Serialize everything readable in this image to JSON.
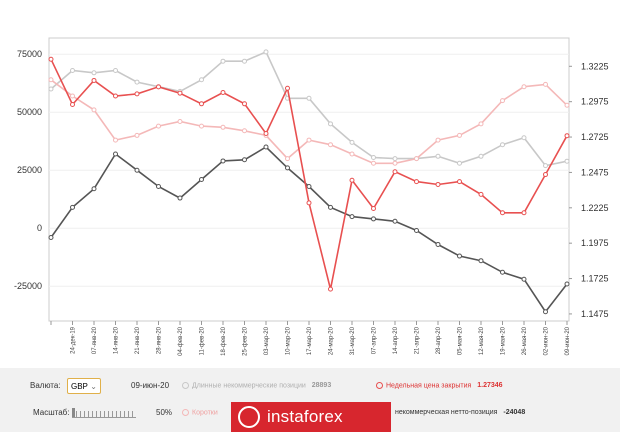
{
  "chart_data": {
    "type": "line",
    "categories": [
      "",
      "24-дек-19",
      "07-янв-20",
      "14-янв-20",
      "21-янв-20",
      "28-янв-20",
      "04-фев-20",
      "11-фев-20",
      "18-фев-20",
      "25-фев-20",
      "03-мар-20",
      "10-мар-20",
      "17-мар-20",
      "24-мар-20",
      "31-мар-20",
      "07-апр-20",
      "14-апр-20",
      "21-апр-20",
      "28-апр-20",
      "05-мая-20",
      "12-мая-20",
      "19-мая-20",
      "26-мая-20",
      "02-июн-20",
      "09-июн-20"
    ],
    "left_axis": {
      "min": -40000,
      "max": 82000,
      "ticks": [
        -25000,
        0,
        25000,
        50000,
        75000
      ],
      "tick_labels": [
        "-25000",
        "0",
        "25000",
        "50000",
        "75000"
      ]
    },
    "right_axis": {
      "min": 1.1425,
      "max": 1.3425,
      "ticks": [
        1.1475,
        1.1725,
        1.1975,
        1.2225,
        1.2475,
        1.2725,
        1.2975,
        1.3225
      ],
      "tick_labels": [
        "1.1475",
        "1.1725",
        "1.1975",
        "1.2225",
        "1.2475",
        "1.2725",
        "1.2975",
        "1.3225"
      ]
    },
    "series": [
      {
        "name": "Длинные некоммерческие позиции",
        "axis": "left",
        "color": "#c8c8c8",
        "values": [
          60000,
          68000,
          67000,
          68000,
          63000,
          61000,
          59000,
          64000,
          72000,
          72000,
          76000,
          56000,
          56000,
          45000,
          37000,
          30500,
          30000,
          30000,
          31000,
          28000,
          31000,
          36000,
          39000,
          27000,
          28893
        ]
      },
      {
        "name": "Короткие некоммерческие позиции",
        "axis": "left",
        "color": "#f4b8b8",
        "values": [
          64000,
          57000,
          51000,
          38000,
          40000,
          44000,
          46000,
          44000,
          43500,
          42000,
          40000,
          30000,
          38000,
          36000,
          32000,
          28000,
          28000,
          30000,
          38000,
          40000,
          45000,
          55000,
          61000,
          62000,
          53000
        ]
      },
      {
        "name": "Некоммерческая нетто-позиция",
        "axis": "left",
        "color": "#555555",
        "values": [
          -4000,
          9000,
          17000,
          32000,
          25000,
          18000,
          13000,
          21000,
          29000,
          29500,
          35000,
          26000,
          18000,
          9000,
          5000,
          4000,
          3000,
          -1000,
          -7000,
          -12000,
          -14000,
          -19000,
          -22000,
          -36000,
          -24048
        ]
      },
      {
        "name": "Недельная цена закрытия",
        "axis": "right",
        "color": "#e85050",
        "values": [
          1.3275,
          1.2955,
          1.3125,
          1.3015,
          1.303,
          1.308,
          1.3035,
          1.296,
          1.304,
          1.296,
          1.275,
          1.307,
          1.226,
          1.165,
          1.242,
          1.222,
          1.248,
          1.241,
          1.239,
          1.241,
          1.232,
          1.219,
          1.219,
          1.246,
          1.27346
        ]
      }
    ]
  },
  "controls": {
    "currency_label": "Валюта:",
    "currency_value": "GBP",
    "date": "09-июн-20",
    "long_label": "Длинные некоммерческие позиции",
    "long_value": "28893",
    "close_label": "Недельная цена закрытия",
    "close_value": "1.27346",
    "scale_label": "Масштаб:",
    "scale_value": "50%",
    "short_label_visible": "Коротки",
    "net_label_visible": "некоммерческая нетто-позиция",
    "net_value": "-24048"
  },
  "watermark": {
    "text": "instaforex"
  }
}
